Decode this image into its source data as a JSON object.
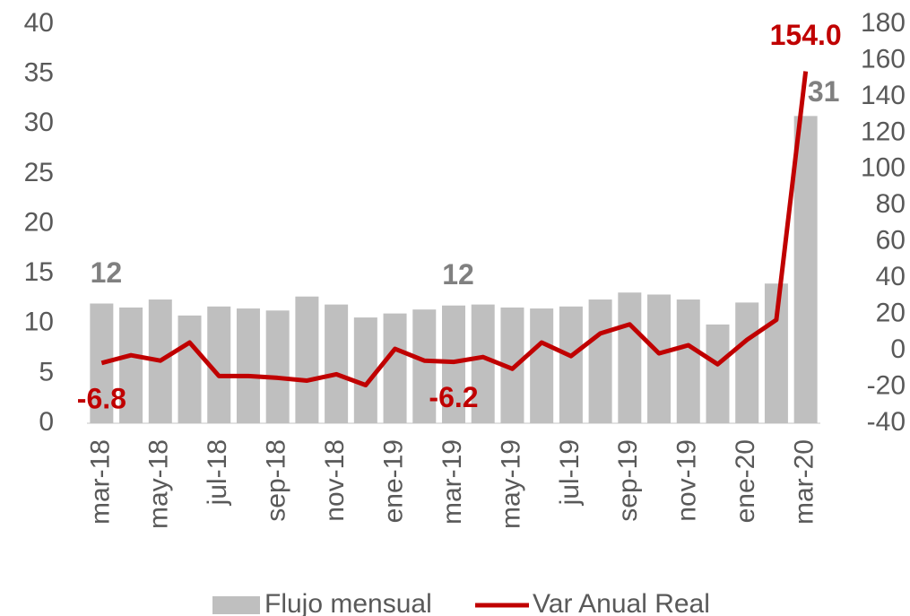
{
  "chart_data": {
    "type": "bar",
    "categories": [
      "mar-18",
      null,
      "may-18",
      null,
      "jul-18",
      null,
      "sep-18",
      null,
      "nov-18",
      null,
      "ene-19",
      null,
      "mar-19",
      null,
      "may-19",
      null,
      "jul-19",
      null,
      "sep-19",
      null,
      "nov-19",
      null,
      "ene-20",
      null,
      "mar-20"
    ],
    "series": [
      {
        "name": "Flujo mensual",
        "color": "#bfbfbf",
        "type": "bar",
        "values": [
          12,
          11.6,
          12.4,
          10.8,
          11.7,
          11.5,
          11.3,
          12.7,
          11.9,
          10.6,
          11.0,
          11.4,
          11.8,
          11.9,
          11.6,
          11.5,
          11.7,
          12.4,
          13.1,
          12.9,
          12.4,
          9.9,
          12.1,
          14.0,
          30.8
        ],
        "value_labels": [
          "12",
          null,
          null,
          null,
          null,
          null,
          null,
          null,
          null,
          null,
          null,
          null,
          "12",
          null,
          null,
          null,
          null,
          null,
          null,
          null,
          null,
          null,
          null,
          null,
          "31"
        ]
      },
      {
        "name": "Var Anual Real",
        "color": "#c00000",
        "type": "line",
        "axis": "y2",
        "values": [
          -6.8,
          -2.5,
          -5.5,
          4.5,
          -14,
          -14,
          -15,
          -16.5,
          -13,
          -19,
          1,
          -5.5,
          -6.2,
          -3.5,
          -10,
          4.5,
          -3,
          9.5,
          14.5,
          -1.5,
          3,
          -7.5,
          6,
          17,
          154.0
        ],
        "value_labels": [
          "-6.8",
          null,
          null,
          null,
          null,
          null,
          null,
          null,
          null,
          null,
          null,
          null,
          "-6.2",
          null,
          null,
          null,
          null,
          null,
          null,
          null,
          null,
          null,
          null,
          null,
          "154.0"
        ]
      }
    ],
    "ylim": [
      0,
      40
    ],
    "yticks": [
      0,
      5,
      10,
      15,
      20,
      25,
      30,
      35,
      40
    ],
    "y2lim": [
      -40,
      180
    ],
    "y2ticks": [
      -40,
      -20,
      0,
      20,
      40,
      60,
      80,
      100,
      120,
      140,
      160,
      180
    ],
    "grid": false,
    "legend": "bottom"
  }
}
